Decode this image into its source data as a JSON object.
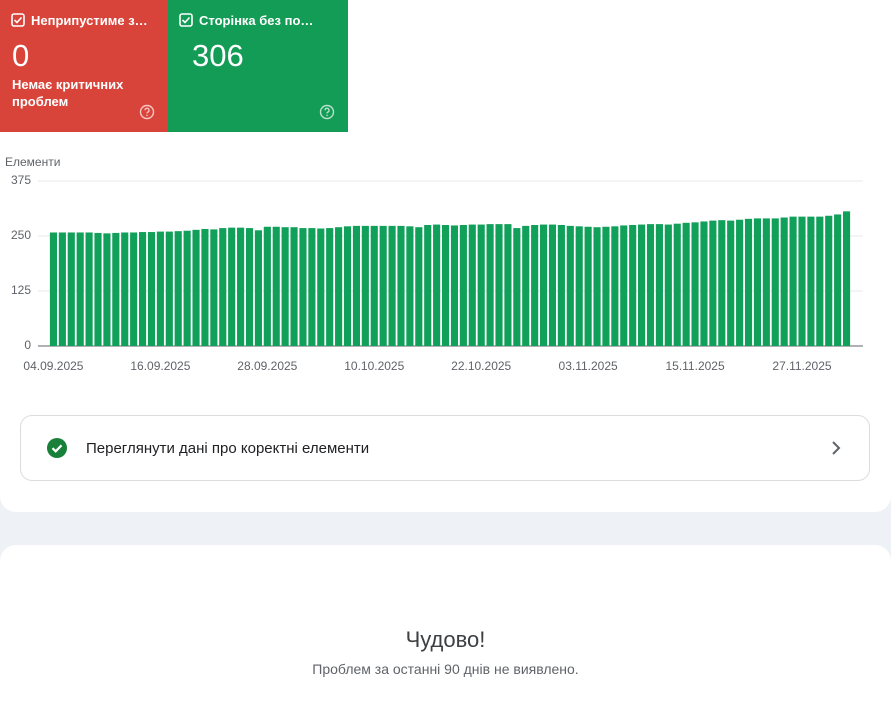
{
  "cards": [
    {
      "title": "Неприпустиме з…",
      "value": "0",
      "subtitle": "Немає критичних проблем"
    },
    {
      "title": "Сторінка без по…",
      "value": "306"
    }
  ],
  "chart_data": {
    "type": "bar",
    "ylabel": "Елементи",
    "color": "#11a05a",
    "ylim": [
      0,
      375
    ],
    "yticks": [
      0,
      125,
      250,
      375
    ],
    "grid": true,
    "categories": [
      "04.09.2025",
      null,
      null,
      null,
      null,
      null,
      null,
      null,
      null,
      null,
      null,
      null,
      "16.09.2025",
      null,
      null,
      null,
      null,
      null,
      null,
      null,
      null,
      null,
      null,
      null,
      "28.09.2025",
      null,
      null,
      null,
      null,
      null,
      null,
      null,
      null,
      null,
      null,
      null,
      "10.10.2025",
      null,
      null,
      null,
      null,
      null,
      null,
      null,
      null,
      null,
      null,
      null,
      "22.10.2025",
      null,
      null,
      null,
      null,
      null,
      null,
      null,
      null,
      null,
      null,
      null,
      "03.11.2025",
      null,
      null,
      null,
      null,
      null,
      null,
      null,
      null,
      null,
      null,
      null,
      "15.11.2025",
      null,
      null,
      null,
      null,
      null,
      null,
      null,
      null,
      null,
      null,
      null,
      "27.11.2025",
      null,
      null,
      null,
      null,
      null
    ],
    "values": [
      258,
      258,
      258,
      258,
      258,
      257,
      256,
      257,
      258,
      258,
      259,
      259,
      260,
      260,
      261,
      262,
      264,
      266,
      265,
      268,
      269,
      269,
      268,
      263,
      271,
      271,
      270,
      270,
      268,
      268,
      267,
      268,
      270,
      272,
      273,
      273,
      273,
      273,
      273,
      273,
      272,
      270,
      275,
      276,
      275,
      274,
      275,
      276,
      276,
      277,
      277,
      277,
      268,
      273,
      275,
      276,
      276,
      275,
      273,
      272,
      271,
      270,
      271,
      272,
      274,
      275,
      276,
      277,
      277,
      276,
      278,
      280,
      281,
      283,
      285,
      286,
      285,
      287,
      289,
      290,
      290,
      290,
      292,
      294,
      294,
      294,
      294,
      296,
      299,
      306
    ]
  },
  "link": {
    "label": "Переглянути дані про коректні елементи"
  },
  "message": {
    "title": "Чудово!",
    "text": "Проблем за останні 90 днів не виявлено."
  }
}
